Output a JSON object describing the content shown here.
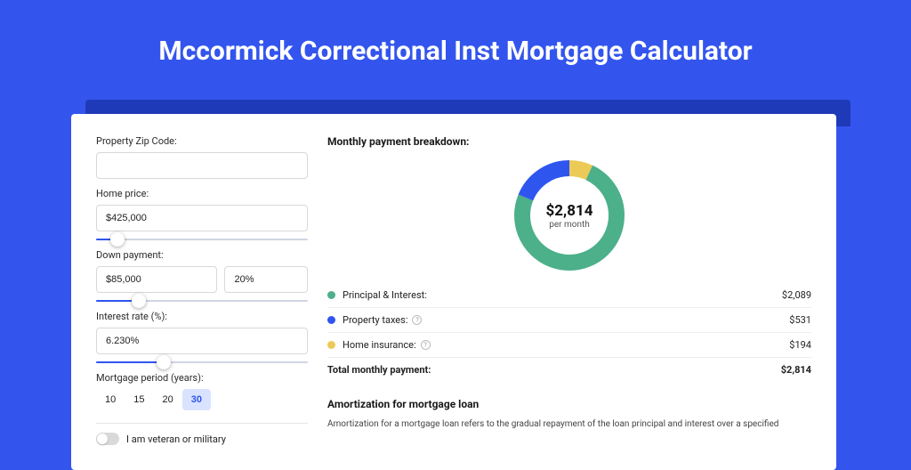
{
  "page_title": "Mccormick Correctional Inst Mortgage Calculator",
  "colors": {
    "page_bg": "#3355ee",
    "shadow_bg": "#1f3ab8",
    "card_bg": "#ffffff",
    "accent": "#2f55ef",
    "green": "#4cb08a",
    "yellow": "#ecca57",
    "blue": "#2f55ef"
  },
  "form": {
    "zip": {
      "label": "Property Zip Code:",
      "value": ""
    },
    "home_price": {
      "label": "Home price:",
      "value": "$425,000",
      "slider_pct": 10
    },
    "down_payment": {
      "label": "Down payment:",
      "amount": "$85,000",
      "percent": "20%",
      "slider_pct": 20
    },
    "interest": {
      "label": "Interest rate (%):",
      "value": "6.230%",
      "slider_pct": 32
    },
    "period": {
      "label": "Mortgage period (years):",
      "options": [
        "10",
        "15",
        "20",
        "30"
      ],
      "selected": "30"
    },
    "veteran": {
      "label": "I am veteran or military",
      "checked": false
    }
  },
  "breakdown": {
    "title": "Monthly payment breakdown:",
    "center_amount": "$2,814",
    "center_sub": "per month",
    "slices": [
      {
        "key": "principal",
        "label": "Principal & Interest:",
        "value": "$2,089",
        "color": "#4cb08a",
        "raw": 2089,
        "help": false
      },
      {
        "key": "taxes",
        "label": "Property taxes:",
        "value": "$531",
        "color": "#2f55ef",
        "raw": 531,
        "help": true
      },
      {
        "key": "insurance",
        "label": "Home insurance:",
        "value": "$194",
        "color": "#ecca57",
        "raw": 194,
        "help": true
      }
    ],
    "total": {
      "label": "Total monthly payment:",
      "value": "$2,814"
    }
  },
  "donut": {
    "size": 124,
    "stroke": 18,
    "segments": [
      {
        "color": "#ecca57",
        "fraction": 0.069
      },
      {
        "color": "#4cb08a",
        "fraction": 0.742
      },
      {
        "color": "#2f55ef",
        "fraction": 0.189
      }
    ]
  },
  "amort": {
    "title": "Amortization for mortgage loan",
    "text": "Amortization for a mortgage loan refers to the gradual repayment of the loan principal and interest over a specified"
  }
}
